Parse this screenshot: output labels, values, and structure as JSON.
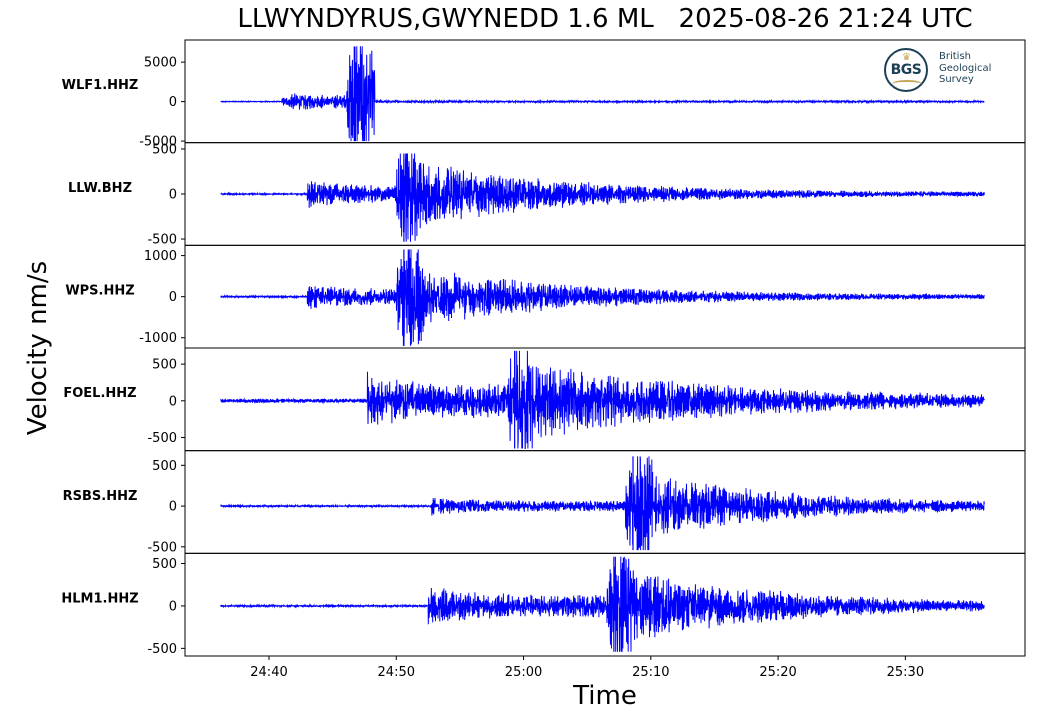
{
  "title": "LLWYNDYRUS,GWYNEDD 1.6 ML   2025-08-26 21:24 UTC",
  "ylabel": "Velocity nm/s",
  "xlabel": "Time",
  "logo": {
    "abbr": "BGS",
    "line1": "British",
    "line2": "Geological",
    "line3": "Survey"
  },
  "colors": {
    "trace": "#0000ff",
    "axes": "#000000",
    "background": "#ffffff"
  },
  "chart_data": {
    "type": "line",
    "x_unit": "time (mm:ss after 21:00 UTC)",
    "xlim": [
      "24:33.4",
      "25:39.4"
    ],
    "x_ticks": [
      "24:40",
      "24:50",
      "25:00",
      "25:10",
      "25:20",
      "25:30"
    ],
    "trace_start": "24:36.2",
    "trace_end": "25:36.2",
    "channels": [
      {
        "name": "WLF1.HHZ",
        "ylim": [
          -5200,
          7800
        ],
        "yticks": [
          5000,
          0,
          -5000
        ],
        "yticklabels": [
          "5000",
          "0",
          "-5000"
        ],
        "p_arrival_s": 4.8,
        "s_arrival_s": 9.9,
        "peak_pos": 7000,
        "peak_neg": -5000,
        "precursor_amp": 400,
        "p_amp": 1000,
        "coda_amp": 80,
        "noise_amp": 40,
        "decay_s": 4
      },
      {
        "name": "LLW.BHZ",
        "ylim": [
          -570,
          570
        ],
        "yticks": [
          500,
          0,
          -500
        ],
        "yticklabels": [
          "500",
          "0",
          "-500"
        ],
        "p_arrival_s": 6.8,
        "s_arrival_s": 13.8,
        "peak_pos": 450,
        "peak_neg": -530,
        "p_amp": 120,
        "coda_amp": 300,
        "noise_amp": 6,
        "decay_s": 12
      },
      {
        "name": "WPS.HHZ",
        "ylim": [
          -1250,
          1250
        ],
        "yticks": [
          1000,
          0,
          -1000
        ],
        "yticklabels": [
          "1000",
          "0",
          "-1000"
        ],
        "p_arrival_s": 6.8,
        "s_arrival_s": 13.8,
        "peak_pos": 1150,
        "peak_neg": -1200,
        "p_amp": 250,
        "coda_amp": 600,
        "noise_amp": 15,
        "decay_s": 12
      },
      {
        "name": "FOEL.HHZ",
        "ylim": [
          -680,
          720
        ],
        "yticks": [
          500,
          0,
          -500
        ],
        "yticklabels": [
          "500",
          "0",
          "-500"
        ],
        "p_arrival_s": 11.5,
        "s_arrival_s": 22.5,
        "peak_pos": 680,
        "peak_neg": -650,
        "p_amp": 300,
        "coda_amp": 400,
        "noise_amp": 20,
        "decay_s": 14
      },
      {
        "name": "RSBS.HHZ",
        "ylim": [
          -580,
          680
        ],
        "yticks": [
          500,
          0,
          -500
        ],
        "yticklabels": [
          "500",
          "0",
          "-500"
        ],
        "p_arrival_s": 16.5,
        "s_arrival_s": 31.8,
        "peak_pos": 610,
        "peak_neg": -540,
        "p_amp": 90,
        "coda_amp": 320,
        "noise_amp": 8,
        "decay_s": 12
      },
      {
        "name": "HLM1.HHZ",
        "ylim": [
          -590,
          620
        ],
        "yticks": [
          500,
          0,
          -500
        ],
        "yticklabels": [
          "500",
          "0",
          "-500"
        ],
        "p_arrival_s": 16.3,
        "s_arrival_s": 30.3,
        "peak_pos": 580,
        "peak_neg": -540,
        "p_amp": 180,
        "coda_amp": 350,
        "noise_amp": 8,
        "decay_s": 12
      }
    ]
  }
}
